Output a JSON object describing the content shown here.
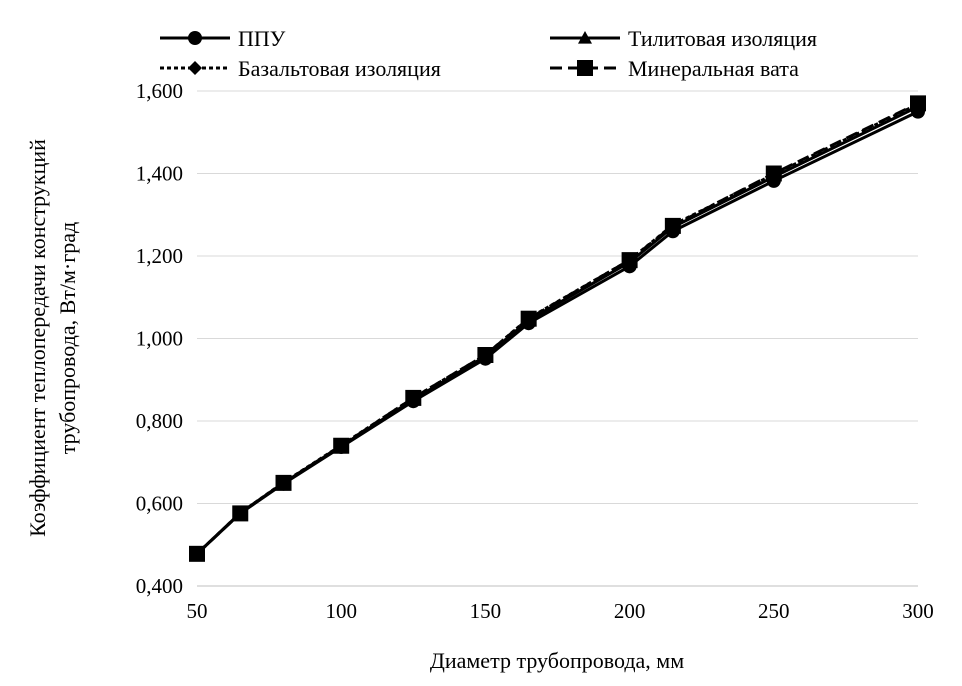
{
  "chart_data": {
    "type": "line",
    "xlabel": "Диаметр трубопровода, мм",
    "ylabel_lines": [
      "Коэффициент теплопередачи конструкций",
      "трубопровода, Вт/м·град"
    ],
    "x": [
      50,
      65,
      80,
      100,
      125,
      150,
      165,
      200,
      215,
      250,
      300
    ],
    "xlim": [
      50,
      300
    ],
    "ylim": [
      0.4,
      1.6
    ],
    "x_ticks": [
      "50",
      "100",
      "150",
      "200",
      "250",
      "300"
    ],
    "y_ticks": [
      "0,400",
      "0,600",
      "0,800",
      "1,000",
      "1,200",
      "1,400",
      "1,600"
    ],
    "grid": "horizontal",
    "legend_position": "top",
    "series": [
      {
        "name": "ППУ",
        "marker": "circle",
        "dash": "solid",
        "values": [
          0.478,
          0.576,
          0.648,
          0.737,
          0.848,
          0.951,
          1.037,
          1.175,
          1.26,
          1.382,
          1.55
        ]
      },
      {
        "name": "Тилитовая изоляция",
        "marker": "triangle",
        "dash": "solid",
        "values": [
          0.478,
          0.577,
          0.65,
          0.739,
          0.852,
          0.957,
          1.044,
          1.185,
          1.27,
          1.392,
          1.562
        ]
      },
      {
        "name": "Базальтовая изоляция",
        "marker": "diamond",
        "dash": "dotted",
        "values": [
          0.478,
          0.577,
          0.651,
          0.741,
          0.856,
          0.96,
          1.049,
          1.19,
          1.275,
          1.398,
          1.568
        ]
      },
      {
        "name": "Минеральная вата",
        "marker": "square",
        "dash": "dashed",
        "values": [
          0.478,
          0.576,
          0.65,
          0.74,
          0.856,
          0.96,
          1.048,
          1.19,
          1.273,
          1.4,
          1.57
        ]
      }
    ]
  }
}
